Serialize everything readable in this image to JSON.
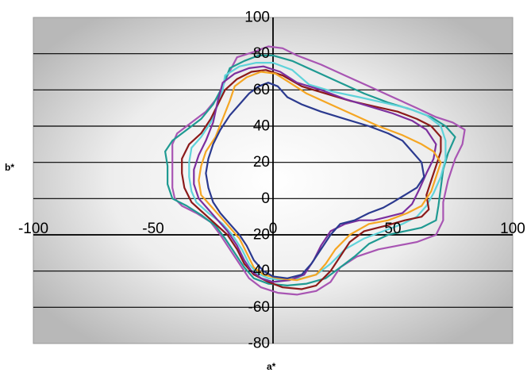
{
  "chart_data": {
    "type": "line",
    "title": "",
    "xlabel": "a*",
    "ylabel": "b*",
    "xlim": [
      -100,
      100
    ],
    "ylim": [
      -80,
      100
    ],
    "x_ticks": [
      "-100",
      "-50",
      "0",
      "50",
      "100"
    ],
    "y_ticks": [
      "-80",
      "-60",
      "-40",
      "-20",
      "0",
      "20",
      "40",
      "60",
      "80",
      "100"
    ],
    "grid": "horizontal",
    "legend": "none",
    "colors": {
      "gridline": "#000000",
      "axis": "#000000",
      "plot_gradient_center": "#ffffff",
      "plot_gradient_edge": "#bdbdbd"
    },
    "series": [
      {
        "color": "#a855b3",
        "points": [
          [
            -15,
            78
          ],
          [
            -8,
            81
          ],
          [
            -2,
            84
          ],
          [
            4,
            83
          ],
          [
            10,
            79
          ],
          [
            20,
            74
          ],
          [
            30,
            68
          ],
          [
            40,
            62
          ],
          [
            50,
            56
          ],
          [
            60,
            50
          ],
          [
            68,
            45
          ],
          [
            75,
            42
          ],
          [
            80,
            38
          ],
          [
            79,
            30
          ],
          [
            76,
            22
          ],
          [
            73,
            10
          ],
          [
            71,
            -2
          ],
          [
            71,
            -12
          ],
          [
            68,
            -20
          ],
          [
            60,
            -24
          ],
          [
            52,
            -26
          ],
          [
            44,
            -28
          ],
          [
            35,
            -32
          ],
          [
            28,
            -38
          ],
          [
            24,
            -46
          ],
          [
            18,
            -51
          ],
          [
            10,
            -53
          ],
          [
            2,
            -52
          ],
          [
            -5,
            -49
          ],
          [
            -10,
            -44
          ],
          [
            -14,
            -36
          ],
          [
            -18,
            -28
          ],
          [
            -22,
            -20
          ],
          [
            -26,
            -13
          ],
          [
            -32,
            -8
          ],
          [
            -38,
            -4
          ],
          [
            -41,
            0
          ],
          [
            -42,
            6
          ],
          [
            -42,
            14
          ],
          [
            -42,
            22
          ],
          [
            -42,
            30
          ],
          [
            -40,
            36
          ],
          [
            -34,
            42
          ],
          [
            -28,
            48
          ],
          [
            -23,
            56
          ],
          [
            -19,
            68
          ],
          [
            -15,
            78
          ]
        ]
      },
      {
        "color": "#1f9a92",
        "points": [
          [
            -18,
            72
          ],
          [
            -12,
            76
          ],
          [
            -6,
            79
          ],
          [
            0,
            79
          ],
          [
            8,
            76
          ],
          [
            18,
            70
          ],
          [
            28,
            64
          ],
          [
            38,
            58
          ],
          [
            48,
            53
          ],
          [
            58,
            49
          ],
          [
            66,
            45
          ],
          [
            72,
            40
          ],
          [
            76,
            34
          ],
          [
            73,
            25
          ],
          [
            71,
            16
          ],
          [
            70,
            6
          ],
          [
            69,
            -4
          ],
          [
            68,
            -12
          ],
          [
            62,
            -16
          ],
          [
            55,
            -18
          ],
          [
            48,
            -20
          ],
          [
            40,
            -25
          ],
          [
            34,
            -32
          ],
          [
            28,
            -38
          ],
          [
            22,
            -44
          ],
          [
            14,
            -47
          ],
          [
            6,
            -48
          ],
          [
            -2,
            -47
          ],
          [
            -8,
            -44
          ],
          [
            -12,
            -38
          ],
          [
            -16,
            -30
          ],
          [
            -20,
            -22
          ],
          [
            -24,
            -15
          ],
          [
            -30,
            -9
          ],
          [
            -36,
            -4
          ],
          [
            -42,
            0
          ],
          [
            -44,
            8
          ],
          [
            -44,
            18
          ],
          [
            -45,
            26
          ],
          [
            -42,
            32
          ],
          [
            -36,
            38
          ],
          [
            -30,
            44
          ],
          [
            -25,
            52
          ],
          [
            -21,
            62
          ],
          [
            -18,
            72
          ]
        ]
      },
      {
        "color": "#5fd3da",
        "points": [
          [
            -20,
            68
          ],
          [
            -14,
            73
          ],
          [
            -7,
            75
          ],
          [
            0,
            75
          ],
          [
            8,
            71
          ],
          [
            15,
            63
          ],
          [
            25,
            59
          ],
          [
            36,
            56
          ],
          [
            46,
            53
          ],
          [
            56,
            50
          ],
          [
            64,
            46
          ],
          [
            70,
            40
          ],
          [
            72,
            32
          ],
          [
            72,
            22
          ],
          [
            70,
            12
          ],
          [
            67,
            3
          ],
          [
            64,
            -4
          ],
          [
            60,
            -10
          ],
          [
            54,
            -14
          ],
          [
            46,
            -18
          ],
          [
            38,
            -22
          ],
          [
            30,
            -28
          ],
          [
            24,
            -36
          ],
          [
            18,
            -42
          ],
          [
            12,
            -44
          ],
          [
            4,
            -45
          ],
          [
            -2,
            -44
          ],
          [
            -7,
            -41
          ],
          [
            -10,
            -36
          ],
          [
            -13,
            -28
          ],
          [
            -17,
            -20
          ],
          [
            -21,
            -14
          ],
          [
            -27,
            -8
          ],
          [
            -32,
            -2
          ],
          [
            -34,
            4
          ],
          [
            -35,
            12
          ],
          [
            -35,
            20
          ],
          [
            -34,
            28
          ],
          [
            -30,
            34
          ],
          [
            -26,
            42
          ],
          [
            -23,
            52
          ],
          [
            -21,
            60
          ],
          [
            -20,
            68
          ]
        ]
      },
      {
        "color": "#8b1a1a",
        "points": [
          [
            -20,
            60
          ],
          [
            -15,
            66
          ],
          [
            -9,
            70
          ],
          [
            -3,
            71
          ],
          [
            4,
            68
          ],
          [
            12,
            62
          ],
          [
            22,
            58
          ],
          [
            32,
            54
          ],
          [
            42,
            51
          ],
          [
            52,
            48
          ],
          [
            60,
            44
          ],
          [
            66,
            40
          ],
          [
            70,
            34
          ],
          [
            70,
            26
          ],
          [
            68,
            18
          ],
          [
            66,
            10
          ],
          [
            64,
            2
          ],
          [
            65,
            -6
          ],
          [
            62,
            -10
          ],
          [
            55,
            -12
          ],
          [
            47,
            -15
          ],
          [
            38,
            -18
          ],
          [
            32,
            -24
          ],
          [
            28,
            -32
          ],
          [
            24,
            -40
          ],
          [
            18,
            -48
          ],
          [
            12,
            -50
          ],
          [
            4,
            -49
          ],
          [
            -2,
            -46
          ],
          [
            -8,
            -42
          ],
          [
            -12,
            -36
          ],
          [
            -15,
            -28
          ],
          [
            -19,
            -20
          ],
          [
            -24,
            -14
          ],
          [
            -29,
            -8
          ],
          [
            -34,
            -2
          ],
          [
            -37,
            6
          ],
          [
            -38,
            14
          ],
          [
            -38,
            22
          ],
          [
            -35,
            30
          ],
          [
            -30,
            36
          ],
          [
            -26,
            44
          ],
          [
            -23,
            52
          ],
          [
            -20,
            60
          ]
        ]
      },
      {
        "color": "#7c2f9e",
        "points": [
          [
            -21,
            64
          ],
          [
            -16,
            69
          ],
          [
            -10,
            72
          ],
          [
            -4,
            73
          ],
          [
            3,
            70
          ],
          [
            10,
            64
          ],
          [
            20,
            60
          ],
          [
            30,
            55
          ],
          [
            40,
            51
          ],
          [
            50,
            47
          ],
          [
            58,
            43
          ],
          [
            64,
            38
          ],
          [
            68,
            30
          ],
          [
            67,
            22
          ],
          [
            64,
            14
          ],
          [
            61,
            5
          ],
          [
            58,
            -3
          ],
          [
            54,
            -8
          ],
          [
            48,
            -10
          ],
          [
            42,
            -12
          ],
          [
            36,
            -12
          ],
          [
            30,
            -14
          ],
          [
            24,
            -18
          ],
          [
            20,
            -26
          ],
          [
            17,
            -34
          ],
          [
            13,
            -42
          ],
          [
            7,
            -45
          ],
          [
            0,
            -46
          ],
          [
            -5,
            -44
          ],
          [
            -9,
            -40
          ],
          [
            -12,
            -34
          ],
          [
            -15,
            -26
          ],
          [
            -19,
            -18
          ],
          [
            -23,
            -12
          ],
          [
            -27,
            -6
          ],
          [
            -31,
            0
          ],
          [
            -33,
            8
          ],
          [
            -33,
            16
          ],
          [
            -31,
            24
          ],
          [
            -28,
            32
          ],
          [
            -25,
            42
          ],
          [
            -23,
            54
          ],
          [
            -21,
            64
          ]
        ]
      },
      {
        "color": "#f5a623",
        "points": [
          [
            -16,
            62
          ],
          [
            -11,
            67
          ],
          [
            -5,
            70
          ],
          [
            1,
            69
          ],
          [
            7,
            64
          ],
          [
            14,
            58
          ],
          [
            24,
            52
          ],
          [
            34,
            46
          ],
          [
            44,
            40
          ],
          [
            54,
            35
          ],
          [
            62,
            30
          ],
          [
            67,
            26
          ],
          [
            70,
            20
          ],
          [
            68,
            12
          ],
          [
            66,
            4
          ],
          [
            62,
            -4
          ],
          [
            56,
            -8
          ],
          [
            48,
            -12
          ],
          [
            40,
            -14
          ],
          [
            32,
            -20
          ],
          [
            26,
            -28
          ],
          [
            22,
            -36
          ],
          [
            18,
            -42
          ],
          [
            10,
            -45
          ],
          [
            2,
            -44
          ],
          [
            -4,
            -42
          ],
          [
            -8,
            -38
          ],
          [
            -11,
            -30
          ],
          [
            -14,
            -22
          ],
          [
            -18,
            -16
          ],
          [
            -22,
            -10
          ],
          [
            -26,
            -4
          ],
          [
            -30,
            2
          ],
          [
            -31,
            10
          ],
          [
            -30,
            18
          ],
          [
            -28,
            26
          ],
          [
            -24,
            34
          ],
          [
            -21,
            44
          ],
          [
            -18,
            54
          ],
          [
            -16,
            62
          ]
        ]
      },
      {
        "color": "#2b3a8f",
        "points": [
          [
            -10,
            58
          ],
          [
            -6,
            62
          ],
          [
            -2,
            64
          ],
          [
            2,
            62
          ],
          [
            6,
            56
          ],
          [
            12,
            52
          ],
          [
            20,
            48
          ],
          [
            30,
            44
          ],
          [
            40,
            40
          ],
          [
            48,
            36
          ],
          [
            54,
            32
          ],
          [
            58,
            26
          ],
          [
            62,
            20
          ],
          [
            63,
            12
          ],
          [
            60,
            6
          ],
          [
            55,
            2
          ],
          [
            50,
            -2
          ],
          [
            46,
            -5
          ],
          [
            40,
            -8
          ],
          [
            34,
            -12
          ],
          [
            28,
            -14
          ],
          [
            24,
            -20
          ],
          [
            20,
            -28
          ],
          [
            16,
            -36
          ],
          [
            12,
            -42
          ],
          [
            6,
            -44
          ],
          [
            0,
            -43
          ],
          [
            -4,
            -40
          ],
          [
            -8,
            -34
          ],
          [
            -11,
            -26
          ],
          [
            -14,
            -20
          ],
          [
            -18,
            -14
          ],
          [
            -22,
            -8
          ],
          [
            -25,
            -2
          ],
          [
            -27,
            6
          ],
          [
            -28,
            14
          ],
          [
            -27,
            22
          ],
          [
            -25,
            30
          ],
          [
            -22,
            38
          ],
          [
            -18,
            46
          ],
          [
            -14,
            52
          ],
          [
            -10,
            58
          ]
        ]
      }
    ]
  }
}
